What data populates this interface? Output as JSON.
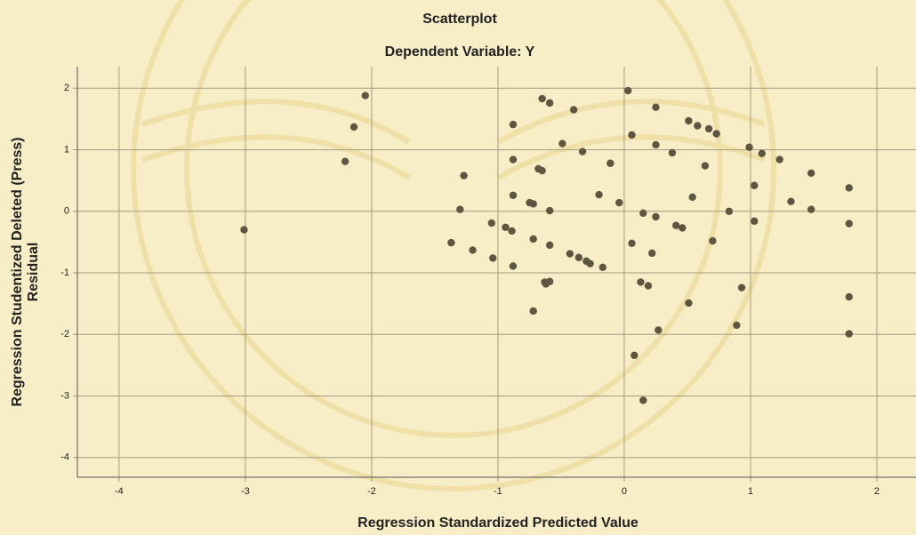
{
  "chart_data": {
    "type": "scatter",
    "title": "Scatterplot",
    "subtitle": "Dependent Variable: Y",
    "xlabel": "Regression Standardized Predicted Value",
    "ylabel": [
      "Regression Studentized Deleted (Press)",
      "Residual"
    ],
    "color": "#5f5641",
    "grid": true,
    "xlim": [
      -4.33,
      2.31
    ],
    "ylim": [
      -4.32,
      2.35
    ],
    "xticks": [
      -4,
      -3,
      -2,
      -1,
      0,
      1,
      2
    ],
    "yticks": [
      -4,
      -3,
      -2,
      -1,
      0,
      1,
      2
    ],
    "x": [
      -3.01,
      -2.21,
      -2.14,
      -2.05,
      -1.37,
      -1.3,
      -1.27,
      -1.2,
      -1.05,
      -1.04,
      -0.94,
      -0.89,
      -0.88,
      -0.88,
      -0.88,
      -0.88,
      -0.72,
      -0.72,
      -0.75,
      -0.72,
      -0.68,
      -0.65,
      -0.65,
      -0.59,
      -0.63,
      -0.62,
      -0.59,
      -0.59,
      -0.59,
      -0.49,
      -0.43,
      -0.4,
      -0.36,
      -0.33,
      -0.3,
      -0.27,
      -0.2,
      -0.17,
      -0.11,
      -0.04,
      0.03,
      0.06,
      0.06,
      0.08,
      0.13,
      0.15,
      0.15,
      0.19,
      0.22,
      0.25,
      0.25,
      0.25,
      0.27,
      0.38,
      0.41,
      0.46,
      0.51,
      0.51,
      0.58,
      0.54,
      0.64,
      0.67,
      0.73,
      0.7,
      0.83,
      0.89,
      0.93,
      0.99,
      1.03,
      1.03,
      1.09,
      1.23,
      1.32,
      1.48,
      1.48,
      1.78,
      1.78,
      1.78,
      1.78
    ],
    "y": [
      -0.3,
      0.81,
      1.37,
      1.88,
      -0.51,
      0.03,
      0.58,
      -0.63,
      -0.19,
      -0.76,
      -0.26,
      -0.32,
      -0.89,
      0.84,
      0.26,
      1.41,
      -0.45,
      -1.62,
      0.14,
      0.12,
      0.69,
      0.66,
      1.83,
      1.76,
      -1.15,
      -1.18,
      -1.14,
      -0.55,
      0.01,
      1.1,
      -0.69,
      1.65,
      -0.75,
      0.97,
      -0.81,
      -0.85,
      0.27,
      -0.91,
      0.78,
      0.14,
      1.96,
      1.24,
      -0.52,
      -2.34,
      -1.15,
      -3.07,
      -0.03,
      -1.21,
      -0.68,
      1.69,
      1.08,
      -0.09,
      -1.93,
      0.95,
      -0.23,
      -0.27,
      -1.49,
      1.47,
      1.39,
      0.23,
      0.74,
      1.34,
      1.26,
      -0.48,
      0.0,
      -1.85,
      -1.24,
      1.04,
      0.42,
      -0.16,
      0.94,
      0.84,
      0.16,
      0.62,
      0.03,
      0.38,
      -0.2,
      -1.39,
      -1.99
    ]
  }
}
